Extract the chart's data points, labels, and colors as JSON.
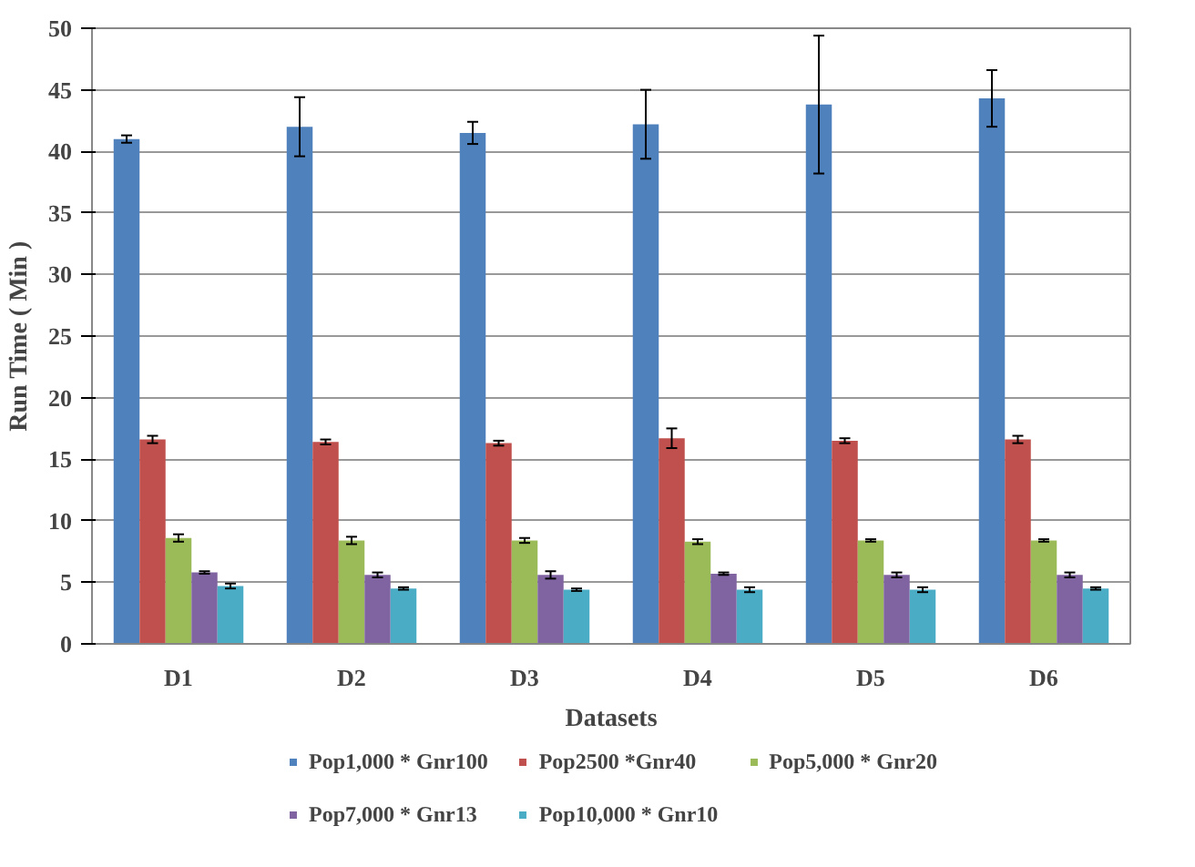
{
  "chart_data": {
    "type": "bar",
    "xlabel": "Datasets",
    "ylabel": "Run Time ( Min )",
    "categories": [
      "D1",
      "D2",
      "D3",
      "D4",
      "D5",
      "D6"
    ],
    "ylim": [
      0,
      50
    ],
    "yticks": [
      0,
      5,
      10,
      15,
      20,
      25,
      30,
      35,
      40,
      45,
      50
    ],
    "grid": "y",
    "legend": "bottom",
    "series": [
      {
        "name": "Pop1,000 * Gnr100",
        "color": "#4f81bd",
        "values": [
          41.0,
          42.0,
          41.5,
          42.2,
          43.8,
          44.3
        ],
        "errors": [
          0.3,
          2.4,
          0.9,
          2.8,
          5.6,
          2.3
        ]
      },
      {
        "name": "Pop2500 *Gnr40",
        "color": "#c0504d",
        "values": [
          16.6,
          16.4,
          16.3,
          16.7,
          16.5,
          16.6
        ],
        "errors": [
          0.3,
          0.2,
          0.2,
          0.8,
          0.2,
          0.3
        ]
      },
      {
        "name": "Pop5,000 * Gnr20",
        "color": "#9bbb59",
        "values": [
          8.6,
          8.4,
          8.4,
          8.3,
          8.4,
          8.4
        ],
        "errors": [
          0.3,
          0.3,
          0.2,
          0.2,
          0.1,
          0.1
        ]
      },
      {
        "name": "Pop7,000 * Gnr13",
        "color": "#8064a2",
        "values": [
          5.8,
          5.6,
          5.6,
          5.7,
          5.6,
          5.6
        ],
        "errors": [
          0.1,
          0.2,
          0.3,
          0.1,
          0.2,
          0.2
        ]
      },
      {
        "name": "Pop10,000 * Gnr10",
        "color": "#4bacc6",
        "values": [
          4.7,
          4.5,
          4.4,
          4.4,
          4.4,
          4.5
        ],
        "errors": [
          0.2,
          0.1,
          0.1,
          0.2,
          0.2,
          0.1
        ]
      }
    ]
  }
}
